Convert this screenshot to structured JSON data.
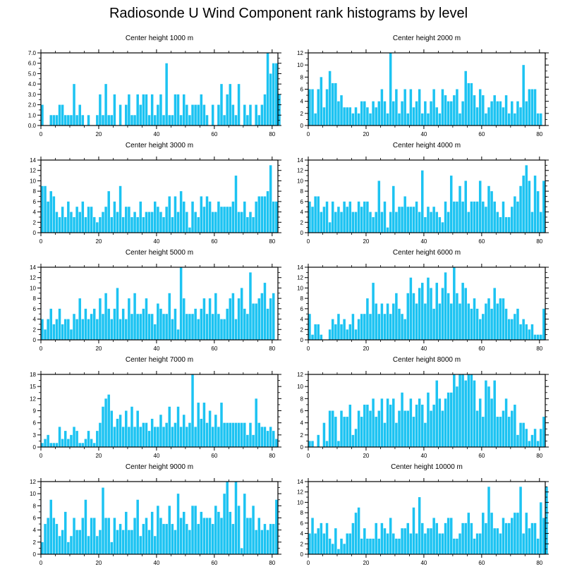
{
  "title": "Radiosonde U Wind Component rank histograms by level",
  "bar_color": "#1cc3f2",
  "chart_data": [
    {
      "type": "bar",
      "title": "Center height 1000 m",
      "xlim": [
        0,
        82
      ],
      "ylim": [
        0,
        7
      ],
      "yticks": [
        "0.0",
        "1.0",
        "2.0",
        "3.0",
        "4.0",
        "5.0",
        "6.0",
        "7.0"
      ],
      "xticks": [
        "0",
        "20",
        "40",
        "60",
        "80"
      ],
      "values": [
        2,
        0,
        0,
        1,
        1,
        1,
        2,
        2,
        1,
        1,
        1,
        4,
        1,
        2,
        1,
        0,
        1,
        0,
        0,
        1,
        3,
        1,
        4,
        1,
        1,
        3,
        0,
        2,
        0,
        2,
        3,
        1,
        1,
        3,
        2,
        3,
        3,
        1,
        3,
        1,
        2,
        3,
        1,
        6,
        1,
        1,
        3,
        3,
        1,
        3,
        2,
        1,
        2,
        2,
        2,
        3,
        2,
        1,
        0,
        2,
        0,
        2,
        4,
        1,
        3,
        4,
        2,
        1,
        4,
        0,
        2,
        1,
        2,
        0,
        2,
        1,
        2,
        3,
        7,
        5,
        6,
        6,
        3
      ]
    },
    {
      "type": "bar",
      "title": "Center height 2000 m",
      "xlim": [
        0,
        82
      ],
      "ylim": [
        0,
        12
      ],
      "yticks": [
        "0",
        "2",
        "4",
        "6",
        "8",
        "10",
        "12"
      ],
      "xticks": [
        "0",
        "20",
        "40",
        "60",
        "80"
      ],
      "values": [
        6,
        6,
        2,
        6,
        8,
        3,
        6,
        9,
        7,
        7,
        4,
        5,
        3,
        3,
        3,
        2,
        3,
        2,
        4,
        4,
        3,
        2,
        4,
        3,
        4,
        6,
        4,
        2,
        12,
        4,
        6,
        2,
        4,
        6,
        2,
        6,
        3,
        4,
        6,
        2,
        4,
        2,
        4,
        6,
        3,
        2,
        6,
        5,
        4,
        4,
        5,
        6,
        2,
        4,
        9,
        7,
        7,
        5,
        3,
        6,
        5,
        2,
        3,
        4,
        5,
        4,
        4,
        3,
        5,
        2,
        4,
        2,
        4,
        3,
        10,
        4,
        6,
        6,
        6,
        2,
        2,
        0,
        0
      ]
    },
    {
      "type": "bar",
      "title": "Center height 3000 m",
      "xlim": [
        0,
        82
      ],
      "ylim": [
        0,
        14
      ],
      "yticks": [
        "0",
        "2",
        "4",
        "6",
        "8",
        "10",
        "12",
        "14"
      ],
      "xticks": [
        "0",
        "20",
        "40",
        "60",
        "80"
      ],
      "values": [
        9,
        9,
        6,
        8,
        7,
        4,
        3,
        5,
        3,
        6,
        4,
        3,
        5,
        4,
        6,
        3,
        5,
        5,
        3,
        2,
        3,
        4,
        5,
        8,
        3,
        6,
        4,
        9,
        3,
        5,
        5,
        3,
        4,
        3,
        6,
        3,
        4,
        4,
        4,
        6,
        5,
        4,
        3,
        5,
        7,
        3,
        7,
        4,
        8,
        6,
        4,
        1,
        6,
        4,
        3,
        7,
        5,
        7,
        6,
        4,
        4,
        6,
        5,
        5,
        5,
        5,
        6,
        11,
        4,
        4,
        6,
        3,
        4,
        3,
        6,
        7,
        7,
        7,
        8,
        13,
        6,
        6,
        0
      ]
    },
    {
      "type": "bar",
      "title": "Center height 4000 m",
      "xlim": [
        0,
        82
      ],
      "ylim": [
        0,
        14
      ],
      "yticks": [
        "0",
        "2",
        "4",
        "6",
        "8",
        "10",
        "12",
        "14"
      ],
      "xticks": [
        "0",
        "20",
        "40",
        "60",
        "80"
      ],
      "values": [
        6,
        5,
        7,
        7,
        4,
        5,
        6,
        2,
        6,
        4,
        5,
        4,
        6,
        5,
        6,
        4,
        4,
        6,
        5,
        6,
        6,
        4,
        3,
        4,
        10,
        4,
        6,
        1,
        4,
        9,
        4,
        5,
        5,
        7,
        5,
        5,
        5,
        6,
        4,
        12,
        3,
        5,
        4,
        5,
        4,
        3,
        2,
        6,
        4,
        11,
        6,
        6,
        9,
        6,
        10,
        4,
        6,
        6,
        6,
        10,
        6,
        5,
        9,
        8,
        6,
        4,
        3,
        6,
        3,
        3,
        5,
        7,
        6,
        9,
        11,
        13,
        10,
        4,
        11,
        8,
        4,
        10,
        0
      ]
    },
    {
      "type": "bar",
      "title": "Center height 5000 m",
      "xlim": [
        0,
        82
      ],
      "ylim": [
        0,
        14
      ],
      "yticks": [
        "0",
        "2",
        "4",
        "6",
        "8",
        "10",
        "12",
        "14"
      ],
      "xticks": [
        "0",
        "20",
        "40",
        "60",
        "80"
      ],
      "values": [
        4,
        2,
        4,
        6,
        3,
        4,
        6,
        3,
        4,
        4,
        2,
        5,
        4,
        8,
        4,
        6,
        4,
        5,
        6,
        4,
        8,
        5,
        9,
        6,
        4,
        6,
        10,
        4,
        6,
        4,
        8,
        5,
        9,
        5,
        5,
        6,
        8,
        5,
        5,
        3,
        7,
        6,
        5,
        5,
        9,
        4,
        6,
        2,
        14,
        8,
        5,
        5,
        5,
        6,
        4,
        6,
        8,
        5,
        8,
        5,
        9,
        5,
        4,
        4,
        6,
        8,
        9,
        4,
        8,
        10,
        6,
        5,
        13,
        7,
        7,
        8,
        9,
        11,
        6,
        8,
        9,
        0,
        0
      ]
    },
    {
      "type": "bar",
      "title": "Center height 6000 m",
      "xlim": [
        0,
        82
      ],
      "ylim": [
        0,
        14
      ],
      "yticks": [
        "0",
        "2",
        "4",
        "6",
        "8",
        "10",
        "12",
        "14"
      ],
      "xticks": [
        "0",
        "20",
        "40",
        "60",
        "80"
      ],
      "values": [
        5,
        1,
        3,
        3,
        1,
        0,
        0,
        2,
        4,
        3,
        5,
        3,
        4,
        2,
        3,
        5,
        2,
        4,
        5,
        5,
        8,
        5,
        11,
        7,
        5,
        7,
        5,
        7,
        5,
        7,
        9,
        6,
        5,
        4,
        9,
        12,
        9,
        7,
        10,
        11,
        7,
        12,
        10,
        6,
        11,
        7,
        10,
        13,
        9,
        7,
        14,
        9,
        7,
        11,
        10,
        7,
        6,
        8,
        6,
        4,
        5,
        7,
        8,
        6,
        10,
        7,
        8,
        8,
        6,
        4,
        4,
        5,
        6,
        3,
        4,
        3,
        2,
        3,
        1,
        1,
        1,
        6,
        0
      ]
    },
    {
      "type": "bar",
      "title": "Center height 7000 m",
      "xlim": [
        0,
        82
      ],
      "ylim": [
        0,
        18
      ],
      "yticks": [
        "0",
        "3",
        "6",
        "9",
        "12",
        "15",
        "18"
      ],
      "xticks": [
        "0",
        "20",
        "40",
        "60",
        "80"
      ],
      "values": [
        1,
        2,
        3,
        1,
        1,
        1,
        5,
        2,
        4,
        2,
        3,
        5,
        4,
        1,
        1,
        2,
        4,
        2,
        1,
        4,
        6,
        10,
        12,
        13,
        9,
        5,
        7,
        8,
        5,
        9,
        5,
        10,
        5,
        9,
        5,
        6,
        6,
        4,
        7,
        5,
        5,
        8,
        5,
        6,
        10,
        5,
        6,
        10,
        5,
        8,
        5,
        6,
        18,
        5,
        11,
        7,
        11,
        6,
        9,
        5,
        8,
        5,
        11,
        6,
        6,
        6,
        6,
        6,
        6,
        6,
        6,
        3,
        6,
        3,
        12,
        6,
        5,
        5,
        4,
        5,
        4,
        2,
        0
      ]
    },
    {
      "type": "bar",
      "title": "Center height 8000 m",
      "xlim": [
        0,
        82
      ],
      "ylim": [
        0,
        12
      ],
      "yticks": [
        "0",
        "2",
        "4",
        "6",
        "8",
        "10",
        "12"
      ],
      "xticks": [
        "0",
        "20",
        "40",
        "60",
        "80"
      ],
      "values": [
        1,
        1,
        0,
        2,
        0,
        4,
        1,
        6,
        6,
        5,
        1,
        6,
        5,
        5,
        7,
        2,
        3,
        6,
        5,
        7,
        7,
        6,
        8,
        5,
        6,
        8,
        4,
        8,
        7,
        8,
        4,
        6,
        9,
        6,
        6,
        8,
        5,
        7,
        8,
        7,
        4,
        9,
        6,
        7,
        11,
        8,
        6,
        8,
        9,
        9,
        12,
        10,
        12,
        12,
        11,
        12,
        12,
        11,
        6,
        8,
        5,
        11,
        10,
        8,
        11,
        5,
        5,
        6,
        8,
        5,
        6,
        7,
        2,
        4,
        4,
        3,
        1,
        2,
        3,
        1,
        3,
        5,
        0
      ]
    },
    {
      "type": "bar",
      "title": "Center height 9000 m",
      "xlim": [
        0,
        82
      ],
      "ylim": [
        0,
        12
      ],
      "yticks": [
        "0",
        "2",
        "4",
        "6",
        "8",
        "10",
        "12"
      ],
      "xticks": [
        "0",
        "20",
        "40",
        "60",
        "80"
      ],
      "values": [
        2,
        5,
        6,
        9,
        6,
        5,
        3,
        4,
        7,
        2,
        3,
        6,
        4,
        4,
        6,
        9,
        3,
        6,
        6,
        3,
        4,
        11,
        6,
        6,
        2,
        6,
        4,
        5,
        4,
        7,
        4,
        4,
        6,
        9,
        3,
        5,
        6,
        4,
        7,
        3,
        8,
        6,
        5,
        5,
        8,
        5,
        4,
        10,
        6,
        7,
        5,
        4,
        8,
        8,
        5,
        7,
        6,
        6,
        6,
        5,
        8,
        7,
        6,
        10,
        12,
        7,
        5,
        12,
        8,
        1,
        10,
        6,
        6,
        8,
        4,
        6,
        4,
        5,
        4,
        5,
        5,
        9,
        0
      ]
    },
    {
      "type": "bar",
      "title": "Center height 10000 m",
      "xlim": [
        0,
        82
      ],
      "ylim": [
        0,
        14
      ],
      "yticks": [
        "0",
        "2",
        "4",
        "6",
        "8",
        "10",
        "12",
        "14"
      ],
      "xticks": [
        "0",
        "20",
        "40",
        "60",
        "80"
      ],
      "values": [
        4,
        7,
        4,
        5,
        6,
        4,
        6,
        3,
        2,
        5,
        1,
        3,
        2,
        4,
        4,
        6,
        8,
        9,
        3,
        5,
        3,
        3,
        3,
        6,
        3,
        6,
        5,
        4,
        7,
        4,
        3,
        3,
        5,
        5,
        6,
        4,
        9,
        4,
        11,
        6,
        4,
        5,
        5,
        7,
        6,
        4,
        4,
        6,
        7,
        7,
        3,
        3,
        4,
        6,
        6,
        8,
        6,
        3,
        4,
        4,
        8,
        6,
        13,
        8,
        5,
        5,
        4,
        7,
        6,
        6,
        7,
        8,
        8,
        13,
        4,
        8,
        5,
        6,
        6,
        3,
        10,
        7,
        13
      ]
    }
  ]
}
